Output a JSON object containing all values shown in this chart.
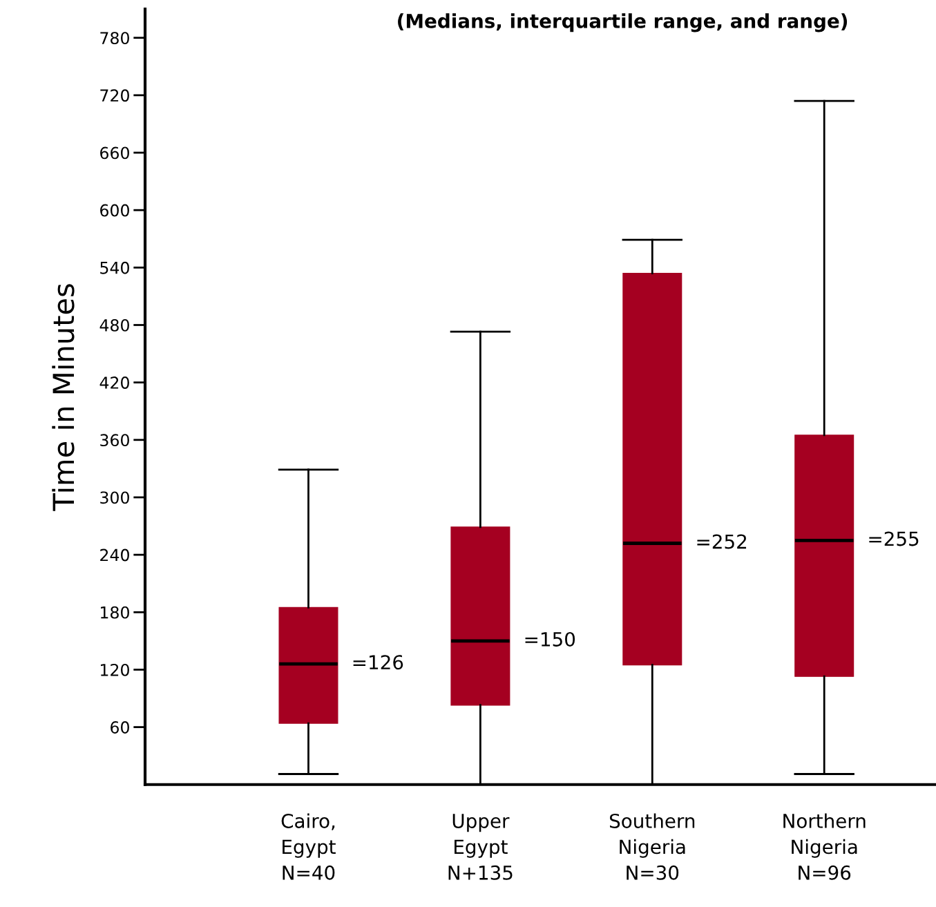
{
  "chart_data": {
    "type": "box",
    "title": "(Medians, interquartile range, and range)",
    "ylabel": "Time in Minutes",
    "categories": [
      "Cairo,\nEgypt\nN=40",
      "Upper\nEgypt\nN+135",
      "Southern\nNigeria\nN=30",
      "Northern\nNigeria\nN=96"
    ],
    "boxes": [
      {
        "low": 11,
        "q1": 64,
        "median": 126,
        "q3": 185,
        "high": 329
      },
      {
        "low": 0,
        "q1": 83,
        "median": 150,
        "q3": 269,
        "high": 473
      },
      {
        "low": 0,
        "q1": 125,
        "median": 252,
        "q3": 534,
        "high": 569
      },
      {
        "low": 11,
        "q1": 113,
        "median": 255,
        "q3": 365,
        "high": 714
      }
    ],
    "value_labels": [
      "=126",
      "=150",
      "=252",
      "=255"
    ],
    "color": "#a50021",
    "ylim": [
      0,
      810
    ],
    "yticks": [
      60,
      120,
      180,
      240,
      300,
      360,
      420,
      480,
      540,
      600,
      660,
      720,
      780
    ],
    "grid": false,
    "legend": false
  }
}
